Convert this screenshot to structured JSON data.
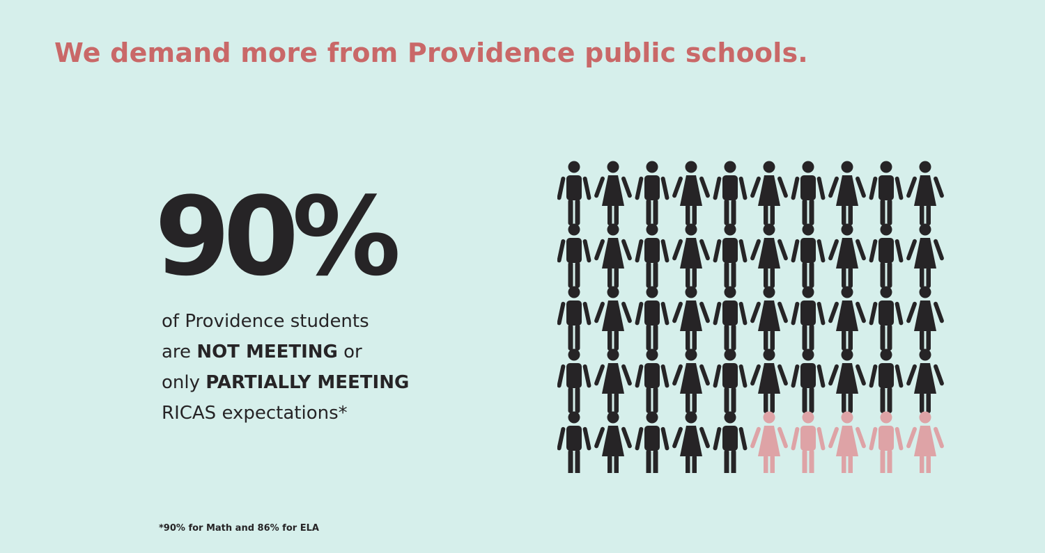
{
  "headline": "We demand more from Providence public schools.",
  "stat": {
    "value": "90%",
    "line1": "of Providence students",
    "line2_pre": "are ",
    "line2_bold": "NOT MEETING",
    "line2_post": " or",
    "line3_pre": "only ",
    "line3_bold": "PARTIALLY MEETING",
    "line4": "RICAS expectations*"
  },
  "footnote": "*90% for Math and 86% for ELA",
  "pictogram": {
    "total": 50,
    "highlighted_count": 45,
    "rows": 5,
    "columns": 10,
    "dark_color": "#262426",
    "light_color": "#dea3a6",
    "icons": [
      "male-figure-icon",
      "female-figure-icon"
    ]
  }
}
